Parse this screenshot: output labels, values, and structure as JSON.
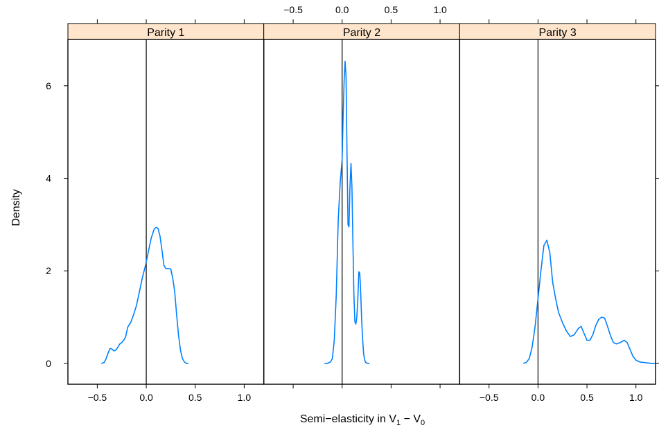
{
  "chart_data": {
    "type": "line",
    "title": "",
    "xlabel": "Semi−elasticity in V",
    "xlabel_sub1": "1",
    "xlabel_mid": " − V",
    "xlabel_sub2": "0",
    "ylabel": "Density",
    "xlim": [
      -0.8,
      1.2
    ],
    "ylim": [
      -0.45,
      7.0
    ],
    "x_ticks": [
      -0.5,
      0.0,
      0.5,
      1.0
    ],
    "x_tick_labels": [
      "−0.5",
      "0.0",
      "0.5",
      "1.0"
    ],
    "y_ticks": [
      0,
      2,
      4,
      6
    ],
    "y_tick_labels": [
      "0",
      "2",
      "4",
      "6"
    ],
    "reference_line_x": 0,
    "colors": {
      "line": "#0080ff",
      "strip": "#ffe5cc"
    },
    "panels": [
      {
        "name": "Parity 1",
        "x": [
          -0.46,
          -0.43,
          -0.41,
          -0.39,
          -0.37,
          -0.35,
          -0.33,
          -0.31,
          -0.29,
          -0.27,
          -0.25,
          -0.23,
          -0.21,
          -0.19,
          -0.16,
          -0.13,
          -0.1,
          -0.07,
          -0.04,
          -0.01,
          0.02,
          0.05,
          0.08,
          0.1,
          0.12,
          0.14,
          0.16,
          0.18,
          0.2,
          0.22,
          0.25,
          0.27,
          0.29,
          0.31,
          0.33,
          0.35,
          0.37,
          0.39,
          0.41,
          0.43
        ],
        "y": [
          0.0,
          0.02,
          0.1,
          0.22,
          0.32,
          0.31,
          0.27,
          0.29,
          0.35,
          0.42,
          0.45,
          0.5,
          0.58,
          0.78,
          0.88,
          1.05,
          1.25,
          1.55,
          1.85,
          2.1,
          2.4,
          2.7,
          2.9,
          2.94,
          2.92,
          2.75,
          2.45,
          2.12,
          2.05,
          2.05,
          2.04,
          1.85,
          1.55,
          1.05,
          0.6,
          0.28,
          0.1,
          0.03,
          0.0,
          0.0
        ]
      },
      {
        "name": "Parity 2",
        "x": [
          -0.18,
          -0.15,
          -0.12,
          -0.1,
          -0.08,
          -0.06,
          -0.04,
          -0.02,
          0.0,
          0.01,
          0.02,
          0.03,
          0.04,
          0.05,
          0.06,
          0.07,
          0.08,
          0.09,
          0.1,
          0.11,
          0.12,
          0.13,
          0.14,
          0.15,
          0.16,
          0.17,
          0.18,
          0.19,
          0.2,
          0.21,
          0.22,
          0.23,
          0.24,
          0.26,
          0.28
        ],
        "y": [
          0.0,
          0.0,
          0.03,
          0.1,
          0.5,
          1.5,
          3.1,
          3.9,
          4.4,
          5.3,
          6.1,
          6.53,
          6.2,
          4.5,
          3.0,
          2.95,
          3.8,
          4.32,
          3.8,
          2.6,
          1.5,
          0.9,
          0.85,
          1.0,
          1.35,
          1.98,
          1.95,
          1.5,
          0.9,
          0.5,
          0.2,
          0.08,
          0.02,
          0.0,
          0.0
        ]
      },
      {
        "name": "Parity 3",
        "x": [
          -0.15,
          -0.12,
          -0.09,
          -0.06,
          -0.03,
          0.0,
          0.03,
          0.06,
          0.09,
          0.12,
          0.15,
          0.18,
          0.21,
          0.25,
          0.29,
          0.33,
          0.37,
          0.41,
          0.44,
          0.47,
          0.5,
          0.53,
          0.56,
          0.59,
          0.62,
          0.65,
          0.68,
          0.71,
          0.74,
          0.77,
          0.8,
          0.84,
          0.88,
          0.91,
          0.94,
          0.97,
          1.0,
          1.04,
          1.08,
          1.12,
          1.16,
          1.2
        ],
        "y": [
          0.0,
          0.02,
          0.1,
          0.35,
          0.8,
          1.4,
          2.0,
          2.55,
          2.66,
          2.4,
          1.75,
          1.4,
          1.1,
          0.88,
          0.7,
          0.58,
          0.62,
          0.75,
          0.8,
          0.65,
          0.5,
          0.5,
          0.62,
          0.82,
          0.95,
          1.0,
          0.98,
          0.8,
          0.6,
          0.45,
          0.42,
          0.45,
          0.5,
          0.45,
          0.3,
          0.15,
          0.07,
          0.03,
          0.02,
          0.01,
          0.0,
          0.0
        ]
      }
    ]
  }
}
